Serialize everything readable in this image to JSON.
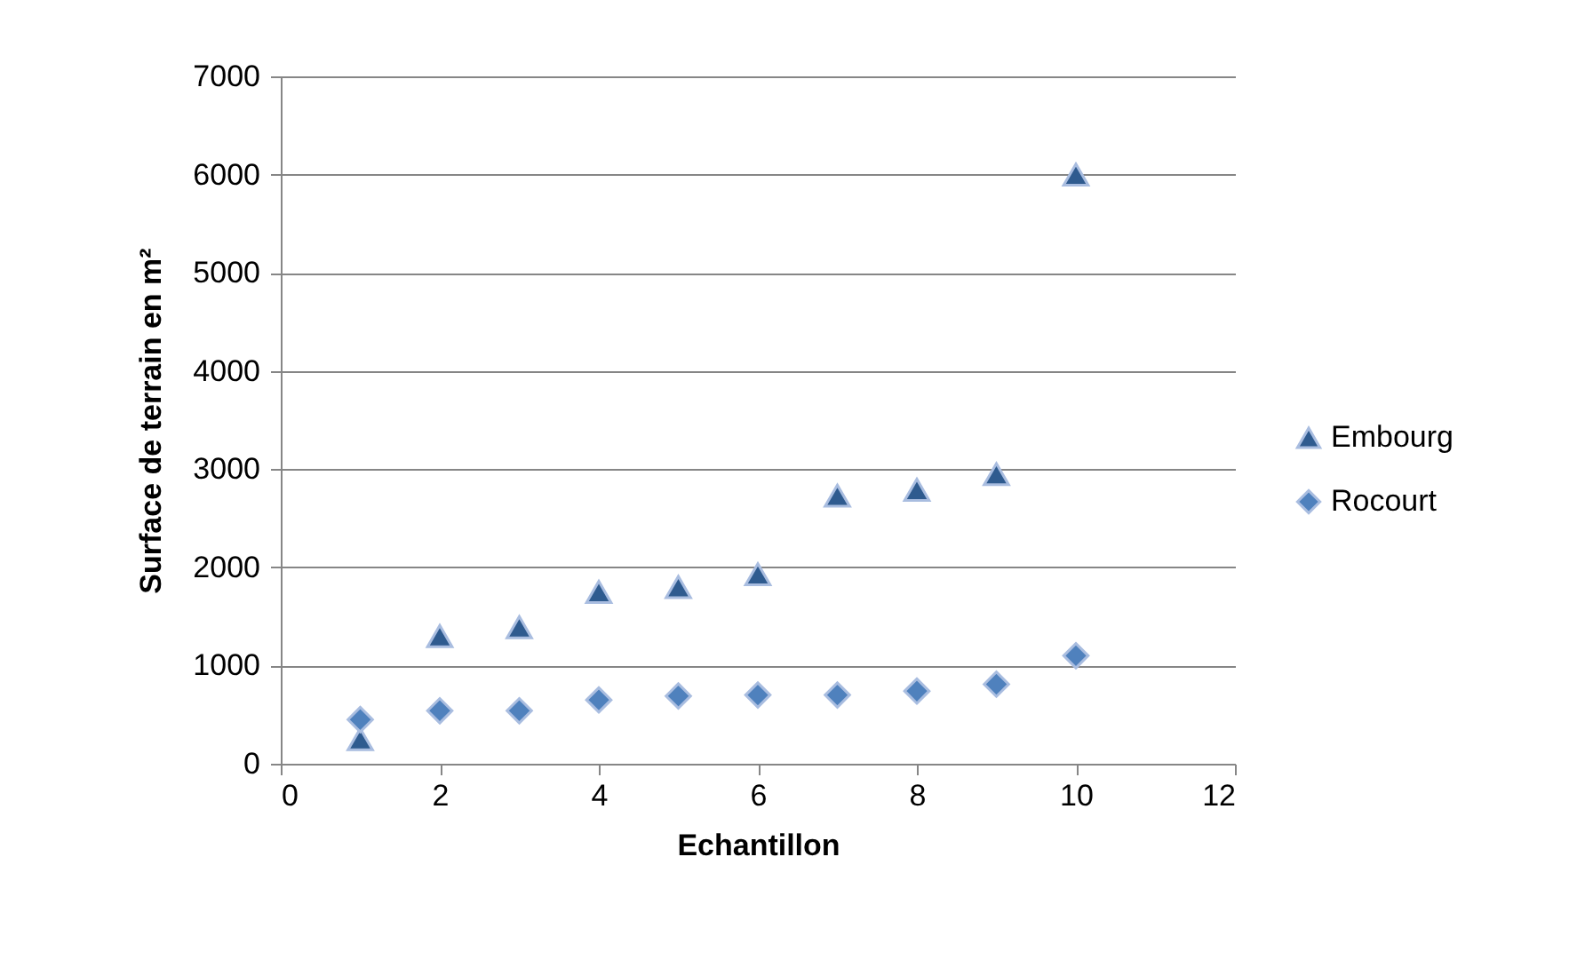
{
  "chart_data": {
    "type": "scatter",
    "xlabel": "Echantillon",
    "ylabel": "Surface de terrain en m²",
    "x": [
      1,
      2,
      3,
      4,
      5,
      6,
      7,
      8,
      9,
      10
    ],
    "series": [
      {
        "name": "Embourg",
        "color": "#2f5b8f",
        "marker": "triangle",
        "values": [
          250,
          1300,
          1390,
          1750,
          1800,
          1930,
          2730,
          2790,
          2950,
          6000
        ]
      },
      {
        "name": "Rocourt",
        "color": "#4f81bd",
        "marker": "diamond",
        "values": [
          450,
          540,
          540,
          650,
          690,
          700,
          700,
          740,
          810,
          1100
        ]
      }
    ],
    "xlim": [
      0,
      12
    ],
    "xticks": [
      0,
      2,
      4,
      6,
      8,
      10,
      12
    ],
    "ylim": [
      0,
      7000
    ],
    "yticks": [
      0,
      1000,
      2000,
      3000,
      4000,
      5000,
      6000,
      7000
    ],
    "grid": "y",
    "legend": "right"
  }
}
